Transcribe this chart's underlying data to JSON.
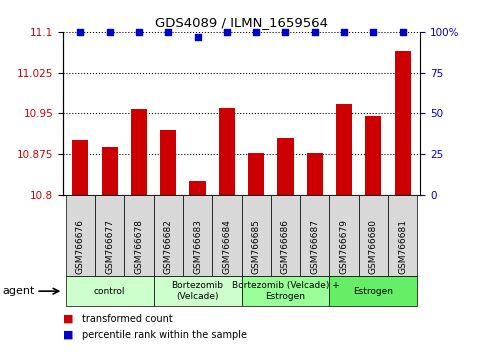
{
  "title": "GDS4089 / ILMN_1659564",
  "samples": [
    "GSM766676",
    "GSM766677",
    "GSM766678",
    "GSM766682",
    "GSM766683",
    "GSM766684",
    "GSM766685",
    "GSM766686",
    "GSM766687",
    "GSM766679",
    "GSM766680",
    "GSM766681"
  ],
  "bar_values": [
    10.9,
    10.887,
    10.957,
    10.92,
    10.825,
    10.96,
    10.877,
    10.905,
    10.877,
    10.967,
    10.945,
    11.065
  ],
  "percentile_values": [
    100,
    100,
    100,
    100,
    97,
    100,
    100,
    100,
    100,
    100,
    100,
    100
  ],
  "bar_color": "#cc0000",
  "dot_color": "#0000cc",
  "ylim": [
    10.8,
    11.1
  ],
  "yticks": [
    10.8,
    10.875,
    10.95,
    11.025,
    11.1
  ],
  "ytick_labels": [
    "10.8",
    "10.875",
    "10.95",
    "11.025",
    "11.1"
  ],
  "right_yticks": [
    0,
    25,
    50,
    75,
    100
  ],
  "right_ytick_labels": [
    "0",
    "25",
    "50",
    "75",
    "100%"
  ],
  "groups": [
    {
      "label": "control",
      "start": 0,
      "end": 2,
      "color": "#ccffcc"
    },
    {
      "label": "Bortezomib\n(Velcade)",
      "start": 3,
      "end": 5,
      "color": "#ccffcc"
    },
    {
      "label": "Bortezomib (Velcade) +\nEstrogen",
      "start": 6,
      "end": 8,
      "color": "#99ff99"
    },
    {
      "label": "Estrogen",
      "start": 9,
      "end": 11,
      "color": "#66ee66"
    }
  ],
  "agent_label": "agent",
  "legend_bar_label": "transformed count",
  "legend_dot_label": "percentile rank within the sample"
}
